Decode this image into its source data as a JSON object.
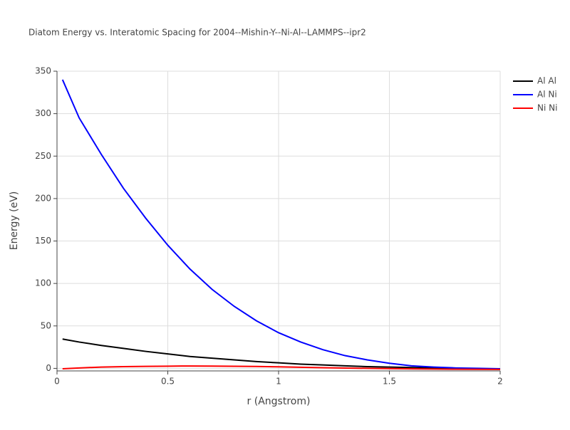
{
  "chart_data": {
    "type": "line",
    "title": "Diatom Energy vs. Interatomic Spacing for 2004--Mishin-Y--Ni-Al--LAMMPS--ipr2",
    "x_label": "r (Angstrom)",
    "y_label": "Energy (eV)",
    "x": [
      0.025,
      0.1,
      0.2,
      0.3,
      0.4,
      0.5,
      0.6,
      0.7,
      0.8,
      0.9,
      1.0,
      1.1,
      1.2,
      1.3,
      1.4,
      1.5,
      1.6,
      1.7,
      1.8,
      1.9,
      2.0
    ],
    "series": [
      {
        "name": "Al Al",
        "color": "#000000",
        "values": [
          34.5,
          31,
          27,
          23.5,
          20,
          17,
          14,
          12,
          10,
          8,
          6.5,
          5,
          4,
          3,
          2,
          1.5,
          1,
          0.5,
          0,
          -0.5,
          -1
        ]
      },
      {
        "name": "Al Ni",
        "color": "#0000ff",
        "values": [
          340,
          295,
          252,
          212,
          177,
          145,
          117,
          93,
          73,
          56,
          42,
          31,
          22,
          15,
          10,
          6,
          3,
          1.5,
          0.5,
          0,
          -0.5
        ]
      },
      {
        "name": "Ni Ni",
        "color": "#ff0000",
        "values": [
          -0.5,
          0.5,
          1.5,
          2,
          2.3,
          2.6,
          2.8,
          2.7,
          2.5,
          2.2,
          1.8,
          1.3,
          0.8,
          0.4,
          0,
          -0.3,
          -0.6,
          -0.8,
          -1,
          -1.1,
          -1.2
        ]
      }
    ],
    "xlim": [
      0,
      2
    ],
    "xticks": [
      0,
      0.5,
      1,
      1.5,
      2
    ],
    "ylim": [
      -3,
      350
    ],
    "yticks": [
      0,
      50,
      100,
      150,
      200,
      250,
      300,
      350
    ],
    "grid": true,
    "legend": "right"
  }
}
